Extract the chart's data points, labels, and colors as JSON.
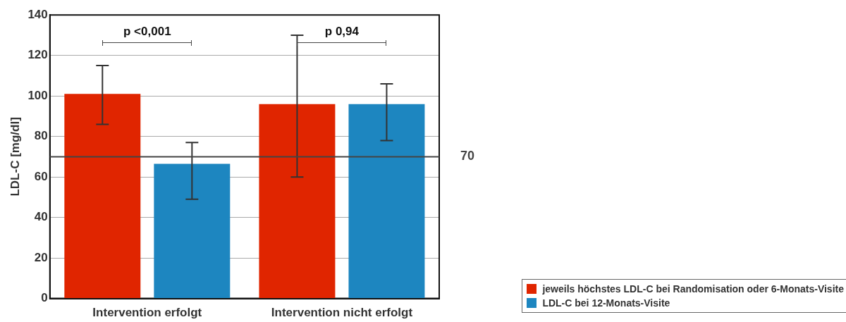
{
  "chart_data": {
    "type": "bar",
    "ylabel": "LDL-C [mg/dl]",
    "categories": [
      "Intervention erfolgt",
      "Intervention nicht erfolgt"
    ],
    "series": [
      {
        "name": "jeweils höchstes LDL-C bei Randomisation oder 6-Monats-Visite",
        "color": "#e02500",
        "values": [
          101,
          96
        ],
        "errors": [
          [
            86,
            115
          ],
          [
            60,
            130
          ]
        ]
      },
      {
        "name": "LDL-C bei 12-Monats-Visite",
        "color": "#1d86c0",
        "values": [
          66.5,
          96
        ],
        "errors": [
          [
            49,
            77
          ],
          [
            78,
            106
          ]
        ]
      }
    ],
    "ylim": [
      0,
      140
    ],
    "yticks": [
      0,
      20,
      40,
      60,
      80,
      100,
      120,
      140
    ],
    "grid": "y",
    "legend": "bottom right",
    "ref_lines": [
      {
        "axis": "y",
        "value": 70,
        "label": "70",
        "color": "#444444"
      }
    ],
    "annotations": [
      "p <0,001",
      "p 0,94"
    ]
  }
}
